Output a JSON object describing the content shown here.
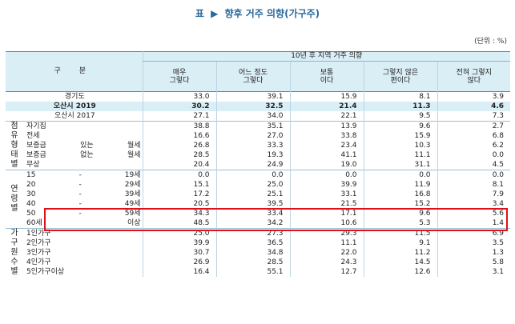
{
  "title": {
    "prefix": "표",
    "arrow": "▶",
    "text": "향후 거주 의향(가구주)"
  },
  "unit": "(단위 : %)",
  "header": {
    "gubun": "구 분",
    "group": "10년 후 지역 거주 의향",
    "cols": [
      "매우\n그렇다",
      "어느 정도\n그렇다",
      "보통\n이다",
      "그렇지 않은\n편이다",
      "전혀 그렇지\n않다"
    ]
  },
  "rows": [
    {
      "label": "경기도",
      "values": [
        "33.0",
        "39.1",
        "15.9",
        "8.1",
        "3.9"
      ]
    },
    {
      "label": "오산시 2019",
      "values": [
        "30.2",
        "32.5",
        "21.4",
        "11.3",
        "4.6"
      ]
    },
    {
      "label": "오산시 2017",
      "values": [
        "27.1",
        "34.0",
        "22.1",
        "9.5",
        "7.3"
      ]
    },
    {
      "label": "자기집",
      "values": [
        "38.8",
        "35.1",
        "13.9",
        "9.6",
        "2.7"
      ]
    },
    {
      "label": "전세",
      "values": [
        "16.6",
        "27.0",
        "33.8",
        "15.9",
        "6.8"
      ]
    },
    {
      "label": "보증금 있는 월세",
      "values": [
        "26.8",
        "33.3",
        "23.4",
        "10.3",
        "6.2"
      ]
    },
    {
      "label": "보증금 없는 월세",
      "values": [
        "28.5",
        "19.3",
        "41.1",
        "11.1",
        "0.0"
      ]
    },
    {
      "label": "무상",
      "values": [
        "20.4",
        "24.9",
        "19.0",
        "31.1",
        "4.5"
      ]
    },
    {
      "label": "15 - 19세",
      "values": [
        "0.0",
        "0.0",
        "0.0",
        "0.0",
        "0.0"
      ]
    },
    {
      "label": "20 - 29세",
      "values": [
        "15.1",
        "25.0",
        "39.9",
        "11.9",
        "8.1"
      ]
    },
    {
      "label": "30 - 39세",
      "values": [
        "17.2",
        "25.1",
        "33.1",
        "16.8",
        "7.9"
      ]
    },
    {
      "label": "40 - 49세",
      "values": [
        "20.5",
        "39.5",
        "21.5",
        "15.2",
        "3.4"
      ]
    },
    {
      "label": "50 - 59세",
      "values": [
        "34.3",
        "33.4",
        "17.1",
        "9.6",
        "5.6"
      ]
    },
    {
      "label": "60세 이상",
      "values": [
        "48.5",
        "34.2",
        "10.6",
        "5.3",
        "1.4"
      ]
    },
    {
      "label": "1인가구",
      "values": [
        "25.0",
        "27.3",
        "29.3",
        "11.5",
        "6.9"
      ]
    },
    {
      "label": "2인가구",
      "values": [
        "39.9",
        "36.5",
        "11.1",
        "9.1",
        "3.5"
      ]
    },
    {
      "label": "3인가구",
      "values": [
        "30.7",
        "34.8",
        "22.0",
        "11.2",
        "1.3"
      ]
    },
    {
      "label": "4인가구",
      "values": [
        "26.9",
        "28.5",
        "24.3",
        "14.5",
        "5.8"
      ]
    },
    {
      "label": "5인가구이상",
      "values": [
        "16.4",
        "55.1",
        "12.7",
        "12.6",
        "3.1"
      ]
    }
  ],
  "groups": {
    "housing": "점유\n형태별",
    "age": "연령별",
    "household": "가구원\n수별"
  },
  "highlight_color": "#e0101a"
}
